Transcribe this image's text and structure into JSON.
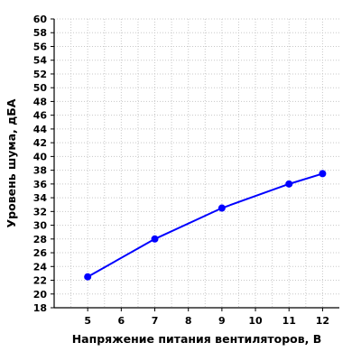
{
  "chart_data": {
    "type": "line",
    "xlabel": "Напряжение питания вентиляторов, В",
    "ylabel": "Уровень шума, дБА",
    "x_ticks": [
      5,
      6,
      7,
      8,
      9,
      10,
      11,
      12
    ],
    "y_ticks": [
      18,
      20,
      22,
      24,
      26,
      28,
      30,
      32,
      34,
      36,
      38,
      40,
      42,
      44,
      46,
      48,
      50,
      52,
      54,
      56,
      58,
      60
    ],
    "xlim": [
      4,
      12.5
    ],
    "ylim": [
      18,
      60
    ],
    "grid": true,
    "series": [
      {
        "color": "#0000ff",
        "points": [
          {
            "x": 5,
            "y": 22.5
          },
          {
            "x": 7,
            "y": 28
          },
          {
            "x": 9,
            "y": 32.5
          },
          {
            "x": 11,
            "y": 36
          },
          {
            "x": 12,
            "y": 37.5
          }
        ]
      }
    ]
  }
}
